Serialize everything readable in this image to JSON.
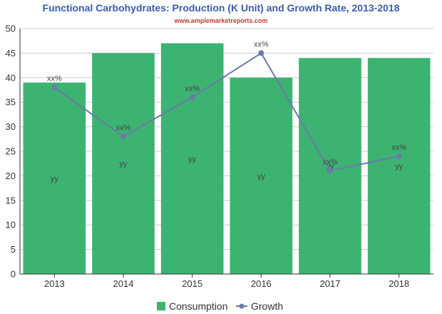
{
  "chart_data": {
    "type": "bar",
    "title": "Functional Carbohydrates: Production (K Unit) and Growth Rate, 2013-2018",
    "subtitle": "www.amplemarketreports.com",
    "categories": [
      "2013",
      "2014",
      "2015",
      "2016",
      "2017",
      "2018"
    ],
    "ylim": [
      0,
      50
    ],
    "yticks": [
      0,
      5,
      10,
      15,
      20,
      25,
      30,
      35,
      40,
      45,
      50
    ],
    "grid": true,
    "legend_position": "bottom",
    "series": [
      {
        "name": "Consumption",
        "type": "bar",
        "color": "#3cb371",
        "values": [
          39,
          45,
          47,
          40,
          44,
          44
        ],
        "data_labels": [
          "yy",
          "yy",
          "yy",
          "yy",
          "yy",
          "yy"
        ]
      },
      {
        "name": "Growth",
        "type": "line",
        "color": "#6b7aa8",
        "values": [
          38,
          28,
          36,
          45,
          21,
          24
        ],
        "data_labels": [
          "xx%",
          "xx%",
          "xx%",
          "xx%",
          "xx%",
          "xx%"
        ]
      }
    ],
    "colors": {
      "title": "#3a5cab",
      "subtitle": "#c0392b",
      "grid": "#cccccc",
      "axis": "#333333"
    }
  }
}
